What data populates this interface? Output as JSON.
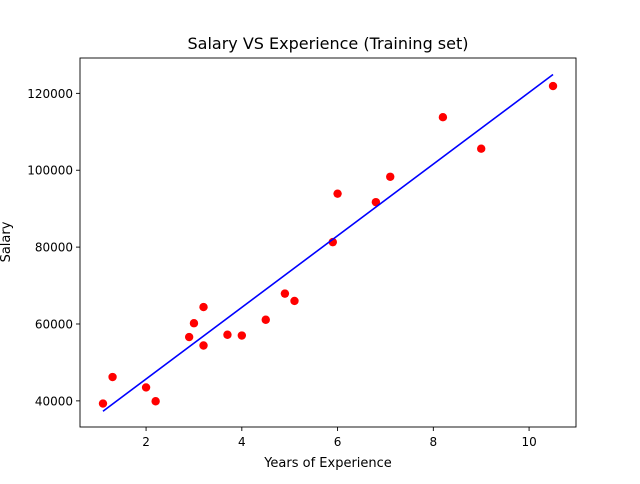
{
  "chart_data": {
    "type": "scatter",
    "title": "Salary VS Experience (Training set)",
    "xlabel": "Years of Experience",
    "ylabel": "Salary",
    "xlim": [
      0.62,
      10.98
    ],
    "ylim": [
      33200,
      129200
    ],
    "x_ticks": [
      2,
      4,
      6,
      8,
      10
    ],
    "y_ticks": [
      40000,
      60000,
      80000,
      100000,
      120000
    ],
    "x_tick_labels": [
      "2",
      "4",
      "6",
      "8",
      "10"
    ],
    "y_tick_labels": [
      "40000",
      "60000",
      "80000",
      "100000",
      "120000"
    ],
    "grid": false,
    "legend": "none",
    "series": [
      {
        "kind": "scatter",
        "color": "#ff0000",
        "x": [
          1.1,
          1.3,
          2.0,
          2.2,
          2.9,
          3.0,
          3.2,
          3.2,
          3.7,
          4.0,
          4.5,
          4.9,
          5.1,
          5.9,
          6.0,
          6.8,
          7.1,
          8.2,
          9.0,
          10.5
        ],
        "y": [
          39300,
          46200,
          43500,
          39900,
          56600,
          60200,
          54400,
          64400,
          57200,
          57000,
          61100,
          67900,
          66000,
          81300,
          93900,
          91700,
          98300,
          113800,
          105600,
          121900
        ]
      },
      {
        "kind": "line",
        "color": "#0000ff",
        "x": [
          1.1,
          10.5
        ],
        "y": [
          37300,
          124900
        ]
      }
    ]
  }
}
